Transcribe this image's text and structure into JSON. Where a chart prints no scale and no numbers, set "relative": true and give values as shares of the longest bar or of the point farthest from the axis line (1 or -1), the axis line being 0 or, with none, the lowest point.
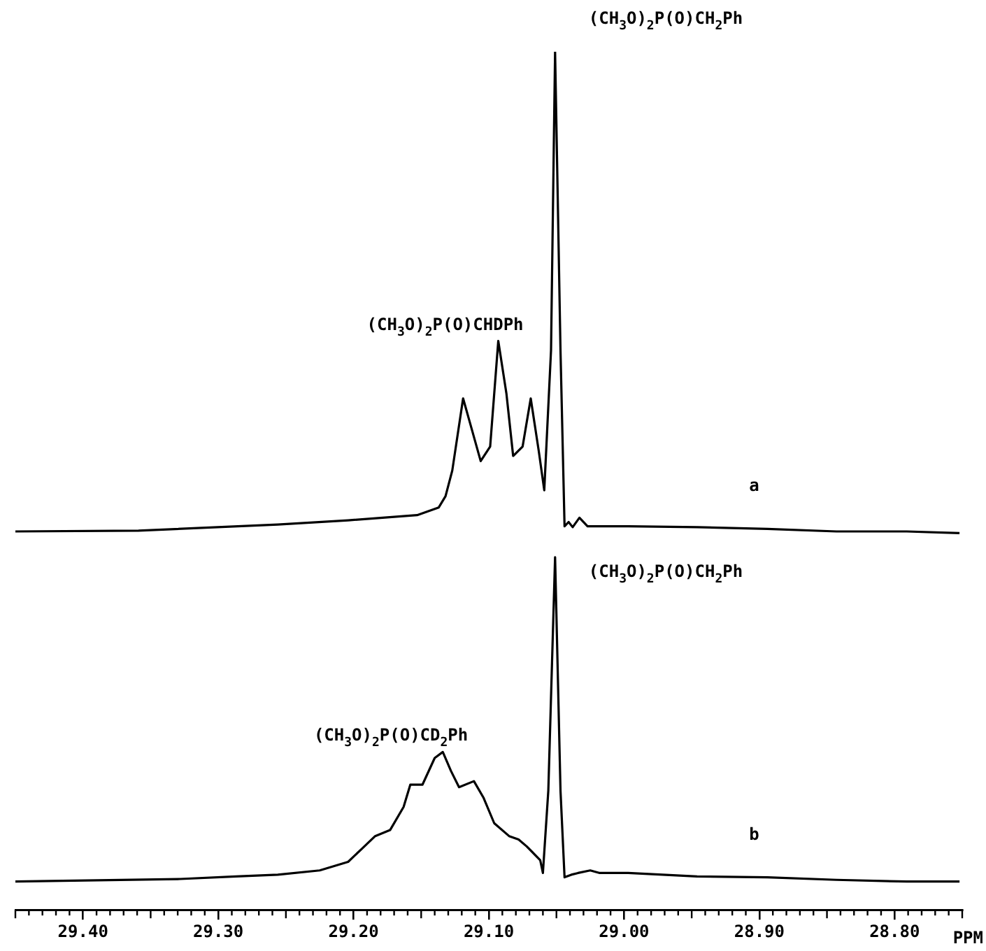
{
  "chart_data": {
    "type": "line",
    "relative": true,
    "xlim": [
      29.45,
      28.75
    ],
    "xlabel": "PPM",
    "xticks": [
      {
        "value": 29.4,
        "label": "29.40"
      },
      {
        "value": 29.3,
        "label": "29.30"
      },
      {
        "value": 29.2,
        "label": "29.20"
      },
      {
        "value": 29.1,
        "label": "29.10"
      },
      {
        "value": 29.0,
        "label": "29.00"
      },
      {
        "value": 28.9,
        "label": "28.90"
      },
      {
        "value": 28.8,
        "label": "28.80"
      }
    ],
    "series": [
      {
        "color": "#000000",
        "x": [
          29.45,
          29.359,
          29.256,
          29.204,
          29.153,
          29.137,
          29.132,
          29.127,
          29.119,
          29.114,
          29.106,
          29.099,
          29.093,
          29.087,
          29.082,
          29.075,
          29.069,
          29.063,
          29.059,
          29.054,
          29.051,
          29.047,
          29.044,
          29.041,
          29.038,
          29.033,
          29.027,
          28.997,
          28.946,
          28.894,
          28.843,
          28.791,
          28.752
        ],
        "values": [
          0.441,
          0.442,
          0.449,
          0.454,
          0.46,
          0.469,
          0.482,
          0.512,
          0.596,
          0.568,
          0.523,
          0.54,
          0.663,
          0.602,
          0.529,
          0.54,
          0.596,
          0.534,
          0.489,
          0.652,
          1.0,
          0.652,
          0.447,
          0.452,
          0.446,
          0.457,
          0.447,
          0.447,
          0.446,
          0.444,
          0.441,
          0.441,
          0.439
        ]
      },
      {
        "color": "#000000",
        "x": [
          29.45,
          29.328,
          29.287,
          29.256,
          29.225,
          29.204,
          29.194,
          29.184,
          29.173,
          29.163,
          29.158,
          29.149,
          29.14,
          29.134,
          29.128,
          29.122,
          29.111,
          29.104,
          29.096,
          29.085,
          29.078,
          29.072,
          29.062,
          29.06,
          29.056,
          29.051,
          29.047,
          29.044,
          29.039,
          29.034,
          29.025,
          29.018,
          28.997,
          28.946,
          28.894,
          28.843,
          28.791,
          28.752
        ],
        "values": [
          0.033,
          0.036,
          0.039,
          0.041,
          0.046,
          0.056,
          0.071,
          0.086,
          0.093,
          0.12,
          0.146,
          0.146,
          0.177,
          0.184,
          0.162,
          0.143,
          0.15,
          0.131,
          0.101,
          0.086,
          0.082,
          0.074,
          0.058,
          0.043,
          0.139,
          0.411,
          0.139,
          0.038,
          0.041,
          0.043,
          0.046,
          0.043,
          0.043,
          0.039,
          0.038,
          0.035,
          0.033,
          0.033
        ]
      }
    ],
    "annotations": [
      {
        "text": "(CH$_{3}$O)$_{2}$P(O)CH$_{2}$Ph",
        "x": 29.051,
        "y": 1
      },
      {
        "text": "(CH$_{3}$O)$_{2}$P(O)CHDPh",
        "x": 29.093,
        "y": 0.663
      },
      "a",
      {
        "text": "(CH$_{3}$O)$_{2}$P(O)CH$_{2}$Ph",
        "x": 29.051,
        "y": 0.411
      },
      {
        "text": "(CH$_{3}$O)$_{2}$P(O)CD$_{2}$Ph",
        "x": 29.134,
        "y": 0.184
      },
      "b"
    ]
  }
}
